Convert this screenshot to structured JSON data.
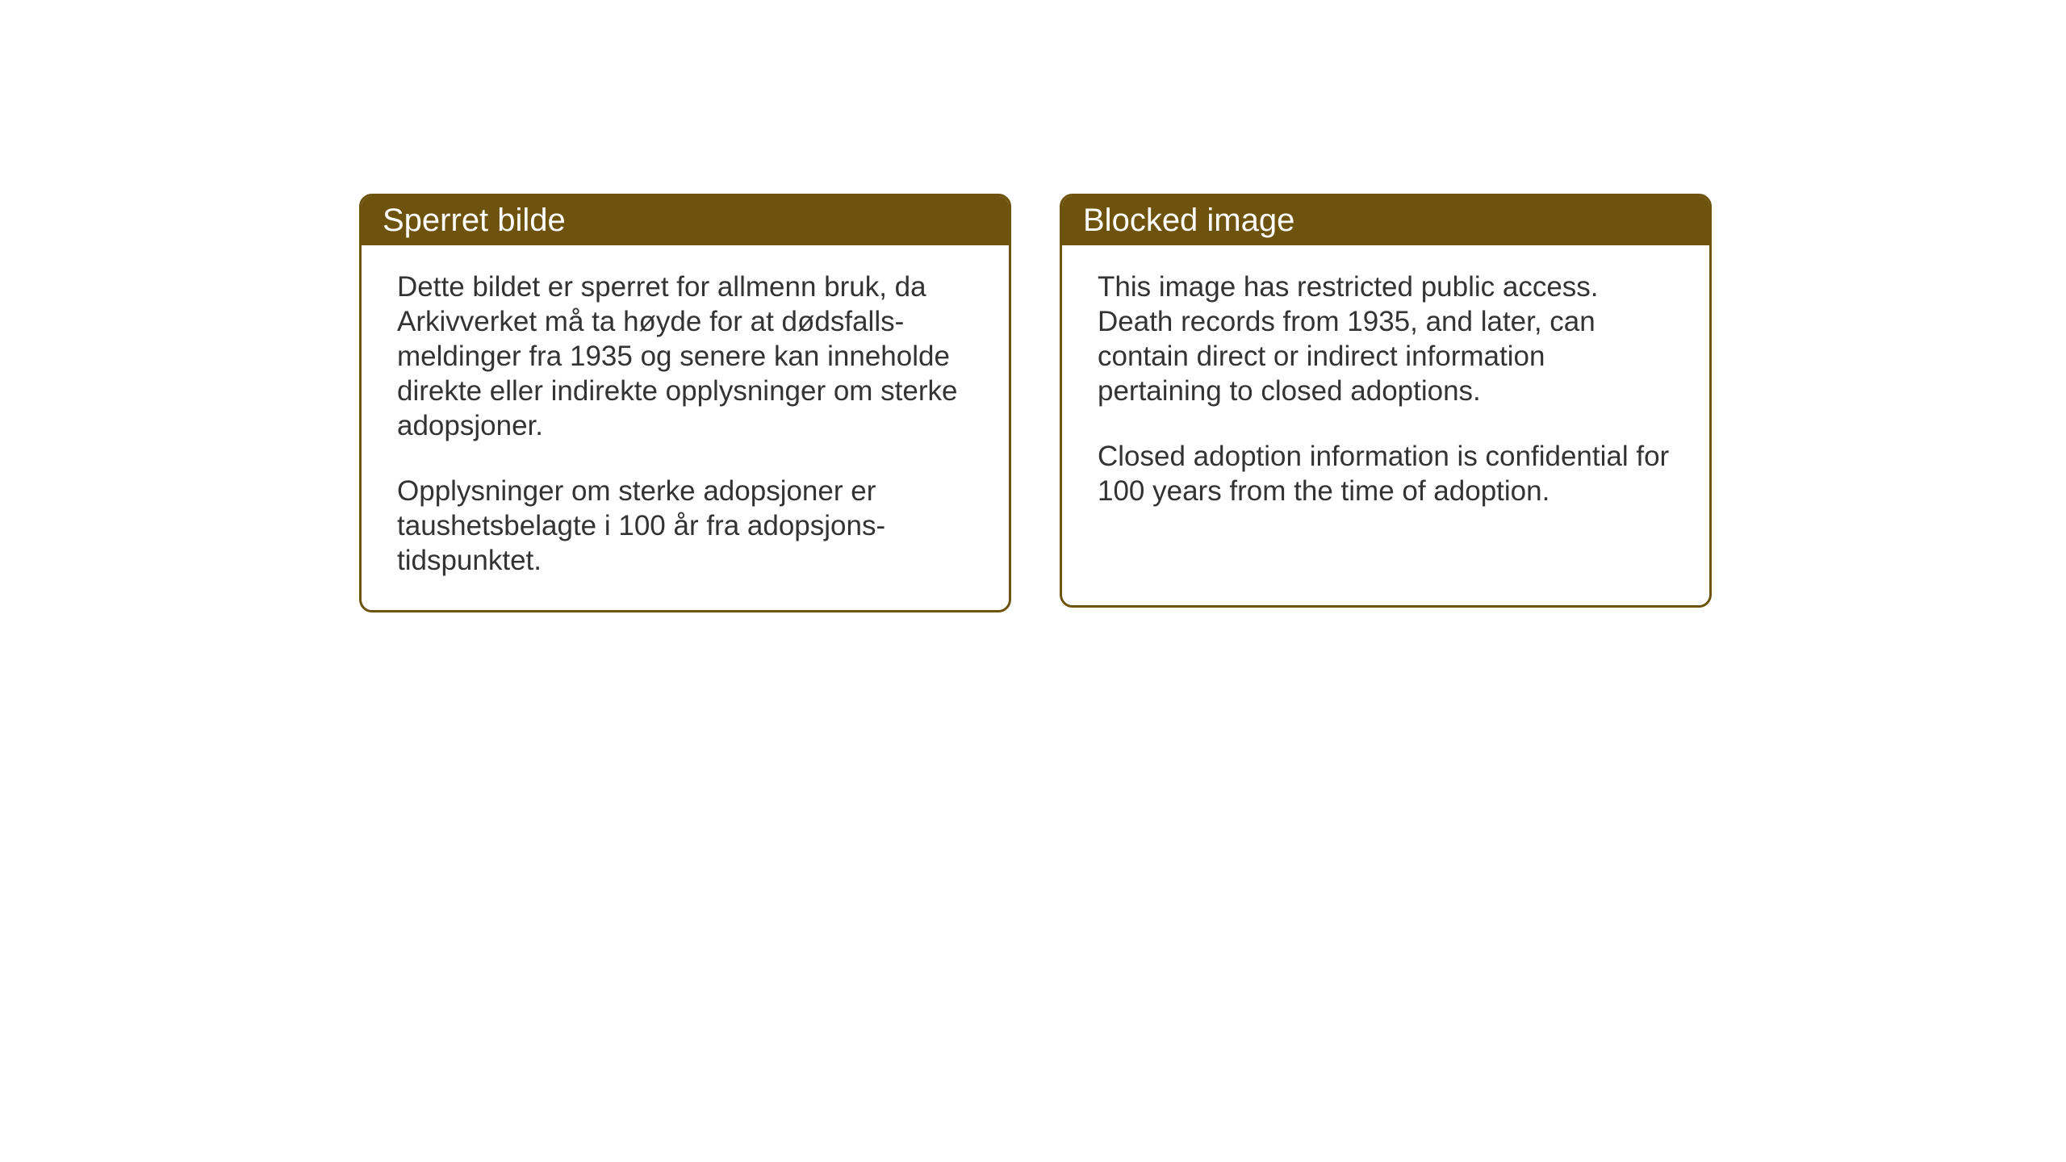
{
  "notices": {
    "left": {
      "title": "Sperret bilde",
      "paragraph1": "Dette bildet er sperret for allmenn bruk, da Arkivverket må ta høyde for at dødsfalls-meldinger fra 1935 og senere kan inneholde direkte eller indirekte opplysninger om sterke adopsjoner.",
      "paragraph2": "Opplysninger om sterke adopsjoner er taushetsbelagte i 100 år fra adopsjons-tidspunktet."
    },
    "right": {
      "title": "Blocked image",
      "paragraph1": "This image has restricted public access. Death records from 1935, and later, can contain direct or indirect information pertaining to closed adoptions.",
      "paragraph2": "Closed adoption information is confidential for 100 years from the time of adoption."
    }
  },
  "styling": {
    "header_background": "#6e530e",
    "header_text_color": "#ffffff",
    "border_color": "#6e530e",
    "body_background": "#ffffff",
    "body_text_color": "#333333",
    "border_radius": 16,
    "border_width": 3,
    "header_fontsize": 40,
    "body_fontsize": 35
  }
}
